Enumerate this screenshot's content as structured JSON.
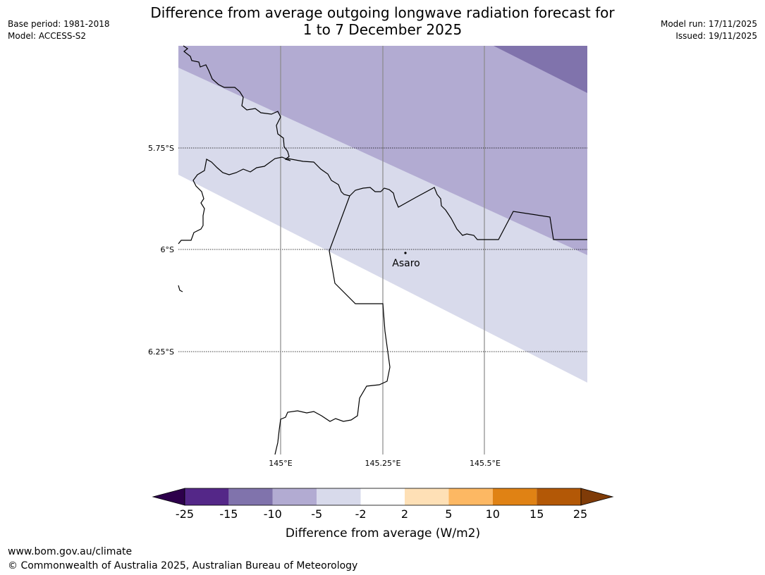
{
  "header": {
    "title_line1": "Difference from average outgoing longwave radiation forecast for",
    "title_line2": "1 to 7 December 2025",
    "base_period": "Base period: 1981-2018",
    "model": "Model: ACCESS-S2",
    "model_run": "Model run: 17/11/2025",
    "issued": "Issued: 19/11/2025"
  },
  "map": {
    "place_label": "Asaro",
    "lat_labels": [
      "5.75°S",
      "6°S",
      "6.25°S"
    ],
    "lon_labels": [
      "145°E",
      "145.25°E",
      "145.5°E"
    ]
  },
  "colorbar": {
    "label": "Difference from average (W/m2)",
    "ticks": [
      "-25",
      "-15",
      "-10",
      "-5",
      "-2",
      "2",
      "5",
      "10",
      "15",
      "25"
    ],
    "colors": {
      "below_min": "#2d004b",
      "bins": [
        "#542788",
        "#8073ac",
        "#b2abd2",
        "#d8daeb",
        "#ffffff",
        "#fee0b6",
        "#fdb863",
        "#e08214",
        "#b35806"
      ],
      "above_max": "#7f3b08"
    }
  },
  "footer": {
    "url": "www.bom.gov.au/climate",
    "copyright": "© Commonwealth of Australia 2025, Australian Bureau of Meteorology"
  }
}
